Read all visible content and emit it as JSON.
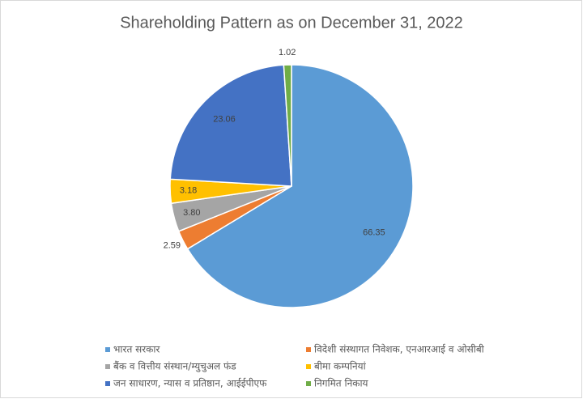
{
  "chart_data": {
    "type": "pie",
    "title": "Shareholding Pattern as on December 31, 2022",
    "categories": [
      "भारत सरकार",
      "विदेशी संस्थागत निवेशक, एनआरआई व ओसीबी",
      "बैंक व वित्तीय संस्थान/म्युचुअल फंड",
      "बीमा कम्पनियां",
      "जन साधारण, न्यास व प्रतिष्ठान, आईईपीएफ",
      "निगमित निकाय"
    ],
    "values": [
      66.35,
      2.59,
      3.8,
      3.18,
      23.06,
      1.02
    ],
    "value_labels": [
      "66.35",
      "2.59",
      "3.80",
      "3.18",
      "23.06",
      "1.02"
    ],
    "colors": [
      "#5b9bd5",
      "#ed7d31",
      "#a5a5a5",
      "#ffc000",
      "#4472c4",
      "#70ad47"
    ],
    "legend": "bottom"
  }
}
